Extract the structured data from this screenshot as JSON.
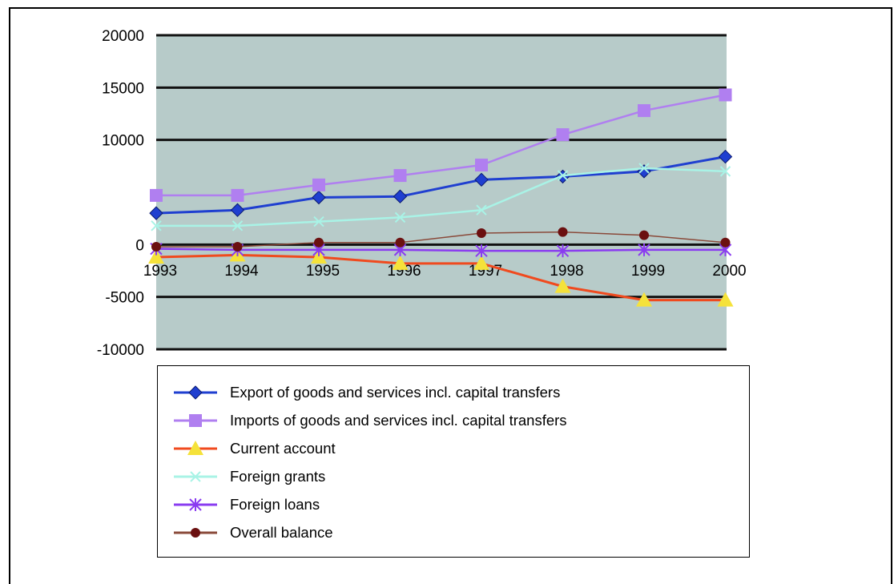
{
  "chart_data": {
    "type": "line",
    "x": [
      "1993",
      "1994",
      "1995",
      "1996",
      "1997",
      "1998",
      "1999",
      "2000"
    ],
    "ylim": [
      -10000,
      20000
    ],
    "yticks": [
      20000,
      15000,
      10000,
      0,
      -5000,
      -10000
    ],
    "ytick_labels": [
      "20000",
      "15000",
      "10000",
      "0",
      "-5000",
      "-10000"
    ],
    "plot_background": "#b7cbc9",
    "grid": true,
    "legend_position": "bottom",
    "series": [
      {
        "name": "Export of goods and services incl. capital transfers",
        "color": "#1f3fd0",
        "marker": "diamond",
        "values": [
          3000,
          3300,
          4500,
          4600,
          6200,
          6500,
          7000,
          8400
        ]
      },
      {
        "name": "Imports of goods and services incl. capital transfers",
        "color": "#b07ff0",
        "marker": "square",
        "values": [
          4700,
          4700,
          5700,
          6600,
          7600,
          10500,
          12800,
          14300
        ]
      },
      {
        "name": "Current account",
        "color": "#f04a1e",
        "marker": "triangle",
        "marker_color": "#f5e23a",
        "values": [
          -1200,
          -1000,
          -1200,
          -1800,
          -1800,
          -4000,
          -5300,
          -5300
        ]
      },
      {
        "name": "Foreign grants",
        "color": "#a9f3e6",
        "marker": "x",
        "values": [
          1800,
          1800,
          2200,
          2600,
          3300,
          6600,
          7300,
          7000
        ]
      },
      {
        "name": "Foreign loans",
        "color": "#8a3cf0",
        "marker": "asterisk",
        "values": [
          -400,
          -500,
          -500,
          -500,
          -600,
          -600,
          -500,
          -500
        ]
      },
      {
        "name": "Overall balance",
        "color": "#8a4a3a",
        "marker": "circle",
        "marker_color": "#6b1010",
        "values": [
          -200,
          -200,
          200,
          200,
          1100,
          1200,
          900,
          200
        ]
      }
    ]
  }
}
